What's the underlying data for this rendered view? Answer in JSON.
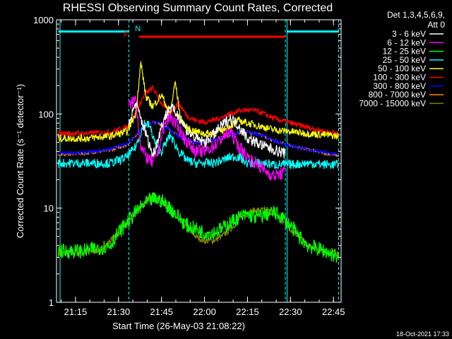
{
  "chart_data": {
    "type": "line",
    "title": "RHESSI Observing Summary Count Rates, Corrected",
    "xlabel": "Start Time (26-May-03 21:08:22)",
    "ylabel": "Corrected Count Rate (s⁻¹ detector⁻¹)",
    "y_scale": "log",
    "ylim": [
      1,
      1000
    ],
    "xlim": [
      21.1394,
      22.7944
    ],
    "x_tick_values": [
      21.25,
      21.5,
      21.75,
      22.0,
      22.25,
      22.5,
      22.75
    ],
    "x_tick_labels": [
      "21:15",
      "21:30",
      "21:45",
      "22:00",
      "22:15",
      "22:30",
      "22:45"
    ],
    "y_tick_values": [
      1,
      10,
      100,
      1000
    ],
    "y_tick_labels": [
      "1",
      "10",
      "100",
      "1000"
    ],
    "legend_header": [
      "Det 1,3,4,5,6,9,",
      "Att 0"
    ],
    "timestamp": "18-Oct-2021 17:33",
    "flags": [
      {
        "label": "N",
        "color": "#00ffff",
        "x": 21.58
      },
      {
        "label": "F",
        "color": "#ff0000",
        "x": 21.58
      }
    ],
    "night_bars": [
      {
        "x0": 21.15,
        "x1": 21.56,
        "level": 750,
        "color": "#00ffff"
      },
      {
        "x0": 22.48,
        "x1": 22.78,
        "level": 750,
        "color": "#00ffff"
      }
    ],
    "flare_bar": {
      "x0": 21.62,
      "x1": 22.47,
      "level": 660,
      "color": "#ff0000"
    },
    "vlines": [
      {
        "x": 21.16,
        "color": "#00ffff",
        "style": "solid"
      },
      {
        "x": 21.56,
        "color": "#00ffff",
        "style": "dashed"
      },
      {
        "x": 22.47,
        "color": "#00ffff",
        "style": "dashed"
      },
      {
        "x": 22.48,
        "color": "#00ffff",
        "style": "solid"
      },
      {
        "x": 22.78,
        "color": "#00ffff",
        "style": "dashed"
      }
    ],
    "series": [
      {
        "name": "3 - 6 keV",
        "color": "#ffffff",
        "jitter": 0.06,
        "x": [
          21.56,
          21.6,
          21.65,
          21.7,
          21.73,
          21.76,
          21.8,
          21.85,
          21.9,
          21.95,
          22.0,
          22.05,
          22.1,
          22.15,
          22.2,
          22.25,
          22.3,
          22.35,
          22.4,
          22.47
        ],
        "y": [
          80,
          130,
          70,
          36,
          55,
          85,
          120,
          95,
          65,
          55,
          50,
          60,
          75,
          90,
          75,
          55,
          50,
          45,
          42,
          38
        ]
      },
      {
        "name": "6 - 12 keV",
        "color": "#ff00ff",
        "jitter": 0.07,
        "x": [
          21.56,
          21.6,
          21.63,
          21.66,
          21.7,
          21.73,
          21.76,
          21.8,
          21.85,
          21.9,
          21.95,
          22.0,
          22.05,
          22.1,
          22.15,
          22.2,
          22.25,
          22.3,
          22.35,
          22.4,
          22.47
        ],
        "y": [
          120,
          145,
          45,
          35,
          30,
          40,
          70,
          95,
          70,
          50,
          40,
          40,
          45,
          55,
          65,
          45,
          35,
          30,
          25,
          22,
          24
        ]
      },
      {
        "name": "12 - 25 keV",
        "color": "#00ff00",
        "jitter": 0.08,
        "x": [
          21.15,
          21.3,
          21.45,
          21.5,
          21.55,
          21.6,
          21.65,
          21.7,
          21.75,
          21.8,
          21.85,
          21.9,
          21.95,
          22.0,
          22.05,
          22.1,
          22.15,
          22.2,
          22.25,
          22.3,
          22.35,
          22.4,
          22.45,
          22.5,
          22.55,
          22.6,
          22.7,
          22.78
        ],
        "y": [
          3.5,
          3.5,
          4.0,
          5.5,
          7.0,
          9.0,
          11.0,
          12.5,
          12.0,
          10.0,
          8.0,
          6.5,
          6.0,
          5.5,
          5.5,
          6.0,
          7.0,
          8.0,
          8.5,
          8.0,
          8.5,
          9.0,
          8.0,
          6.5,
          5.0,
          4.0,
          3.5,
          3.0
        ]
      },
      {
        "name": "25 - 50 keV",
        "color": "#00ffff",
        "jitter": 0.05,
        "x": [
          21.15,
          21.3,
          21.45,
          21.5,
          21.55,
          21.6,
          21.65,
          21.68,
          21.72,
          21.75,
          21.8,
          21.85,
          21.9,
          21.95,
          22.0,
          22.05,
          22.1,
          22.15,
          22.2,
          22.25,
          22.3,
          22.35,
          22.4,
          22.5,
          22.6,
          22.7,
          22.78
        ],
        "y": [
          30,
          30,
          30,
          32,
          35,
          45,
          80,
          75,
          45,
          40,
          60,
          40,
          32,
          30,
          30,
          30,
          32,
          35,
          35,
          30,
          30,
          30,
          29,
          29,
          30,
          29,
          29
        ]
      },
      {
        "name": "50 - 100 keV",
        "color": "#ffff00",
        "jitter": 0.04,
        "x": [
          21.15,
          21.3,
          21.45,
          21.55,
          21.6,
          21.63,
          21.66,
          21.7,
          21.75,
          21.8,
          21.83,
          21.86,
          21.9,
          21.95,
          22.0,
          22.05,
          22.1,
          22.15,
          22.2,
          22.25,
          22.3,
          22.35,
          22.4,
          22.5,
          22.6,
          22.7,
          22.78
        ],
        "y": [
          55,
          55,
          58,
          65,
          100,
          350,
          150,
          120,
          160,
          100,
          220,
          90,
          70,
          65,
          62,
          62,
          66,
          75,
          85,
          80,
          76,
          72,
          68,
          65,
          62,
          60,
          58
        ]
      },
      {
        "name": "100 - 300 keV",
        "color": "#ff0000",
        "jitter": 0.03,
        "x": [
          21.15,
          21.3,
          21.45,
          21.55,
          21.6,
          21.65,
          21.7,
          21.75,
          21.8,
          21.85,
          21.9,
          21.95,
          22.0,
          22.05,
          22.1,
          22.15,
          22.2,
          22.25,
          22.3,
          22.35,
          22.4,
          22.5,
          22.6,
          22.7,
          22.78
        ],
        "y": [
          62,
          62,
          64,
          72,
          100,
          160,
          190,
          130,
          100,
          130,
          95,
          85,
          82,
          86,
          92,
          100,
          108,
          110,
          108,
          100,
          90,
          80,
          72,
          65,
          62
        ]
      },
      {
        "name": "300 - 800 keV",
        "color": "#0000ff",
        "jitter": 0.02,
        "x": [
          21.15,
          21.3,
          21.45,
          21.55,
          21.6,
          21.65,
          21.7,
          21.75,
          21.8,
          21.85,
          21.9,
          21.95,
          22.0,
          22.05,
          22.1,
          22.15,
          22.2,
          22.25,
          22.3,
          22.35,
          22.4,
          22.5,
          22.6,
          22.7,
          22.78
        ],
        "y": [
          38,
          39,
          42,
          48,
          60,
          75,
          82,
          78,
          68,
          58,
          52,
          50,
          50,
          52,
          56,
          60,
          63,
          64,
          62,
          58,
          52,
          46,
          42,
          39,
          37
        ]
      },
      {
        "name": "800 - 7000 keV",
        "color": "#ff8800",
        "jitter": 0.015,
        "x": [
          21.15,
          21.3,
          21.45,
          21.55,
          21.6,
          21.65,
          21.7,
          21.75,
          21.8,
          21.85,
          21.9,
          21.95,
          22.0,
          22.05,
          22.1,
          22.15,
          22.2,
          22.25,
          22.3,
          22.35,
          22.4,
          22.5,
          22.6,
          22.7,
          22.78
        ],
        "y": [
          37,
          38,
          41,
          47,
          59,
          74,
          82,
          78,
          68,
          58,
          52,
          50,
          50,
          52,
          56,
          60,
          63,
          64,
          62,
          58,
          52,
          46,
          42,
          38,
          36
        ]
      },
      {
        "name": "7000 - 15000 keV",
        "color": "#808000",
        "jitter": 0.035,
        "x": [
          21.15,
          21.3,
          21.4,
          21.5,
          21.55,
          21.6,
          21.65,
          21.7,
          21.75,
          21.8,
          21.85,
          21.9,
          21.95,
          22.0,
          22.05,
          22.1,
          22.15,
          22.2,
          22.25,
          22.3,
          22.35,
          22.4,
          22.45,
          22.5,
          22.55,
          22.6,
          22.7,
          22.78
        ],
        "y": [
          3.3,
          3.4,
          3.6,
          5.5,
          7.0,
          9.0,
          11.5,
          13.0,
          12.0,
          9.5,
          7.5,
          6.0,
          5.0,
          4.5,
          4.5,
          5.0,
          6.0,
          7.5,
          9.0,
          9.5,
          9.5,
          9.0,
          7.5,
          6.0,
          5.0,
          4.0,
          3.4,
          3.3
        ]
      }
    ]
  }
}
